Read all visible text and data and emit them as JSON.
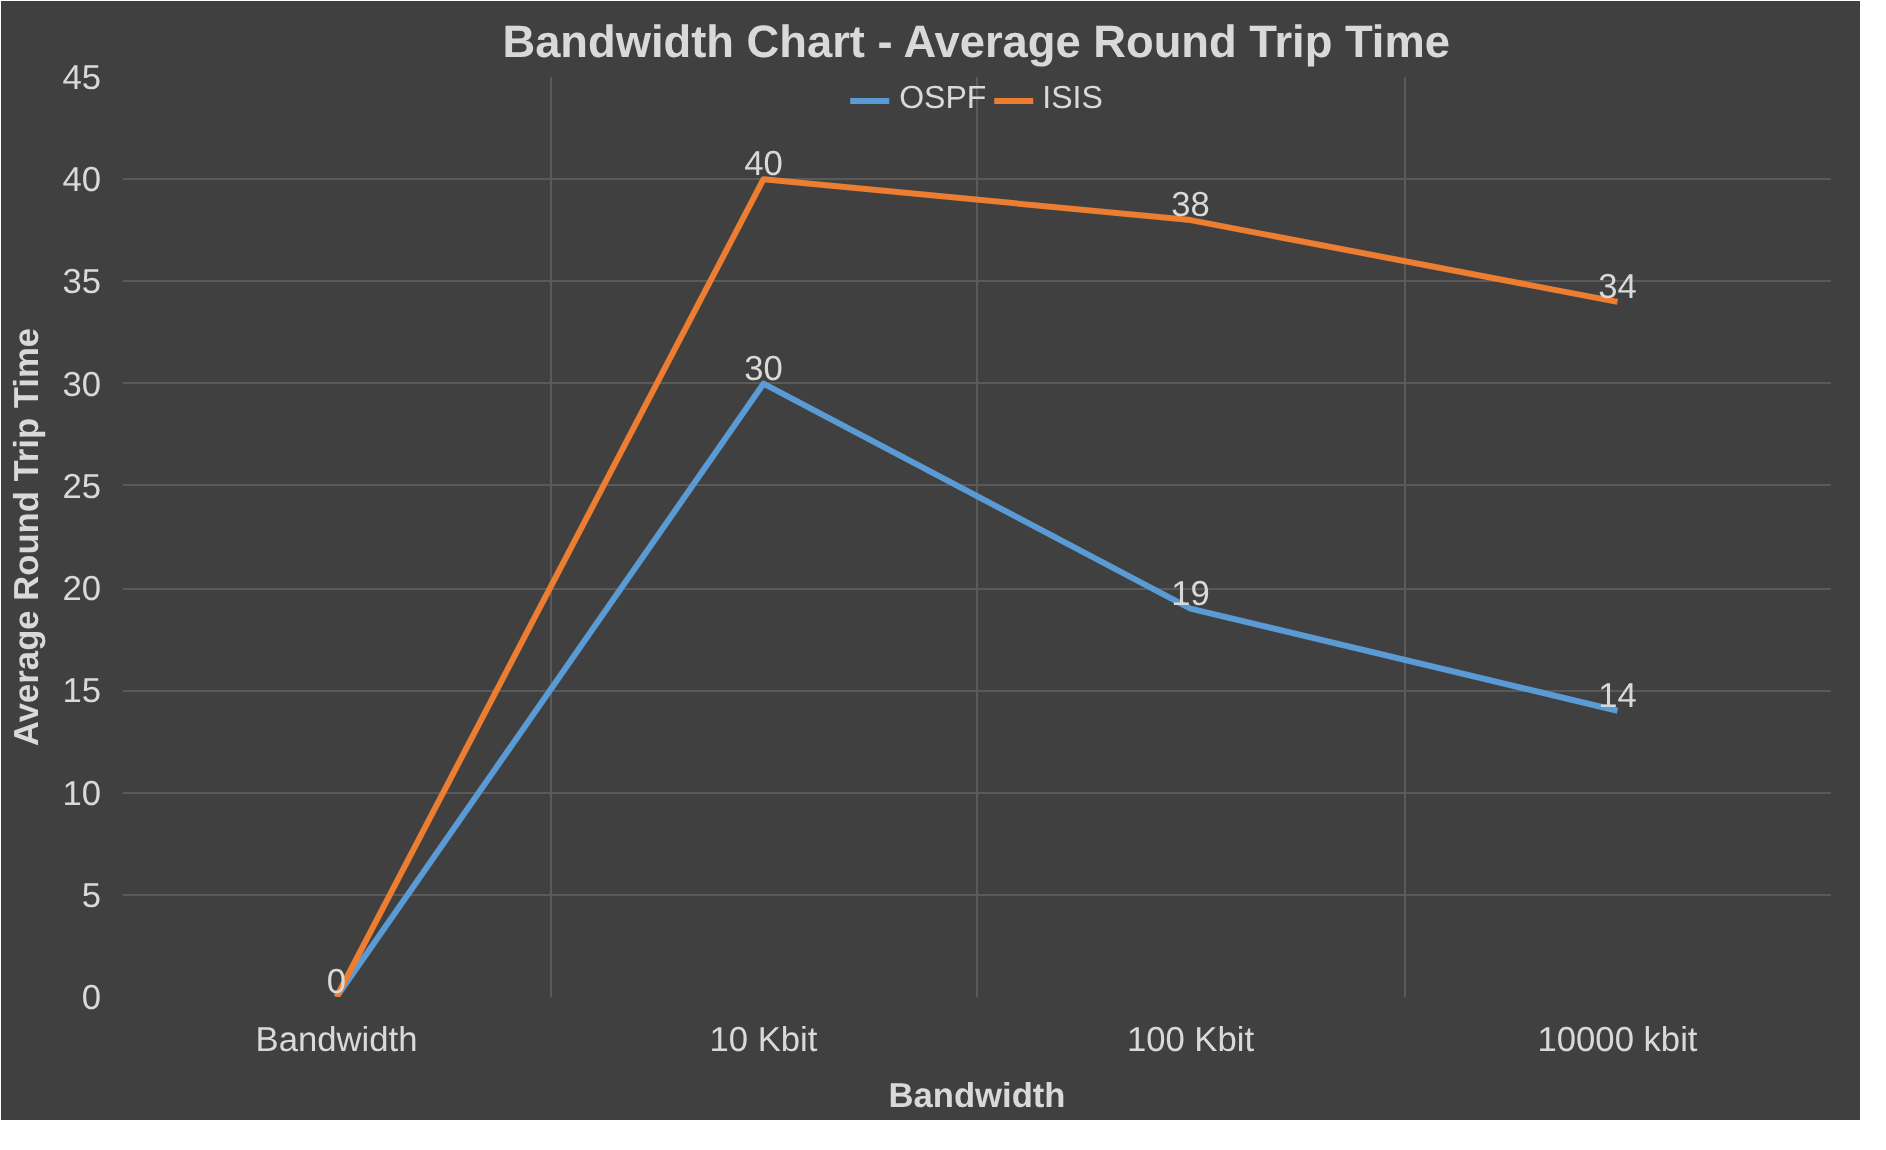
{
  "chart_data": {
    "type": "line",
    "title": "Bandwidth Chart - Average Round Trip Time",
    "xlabel": "Bandwidth",
    "ylabel": "Average Round Trip Time",
    "categories": [
      "Bandwidth",
      "10 Kbit",
      "100 Kbit",
      "10000 kbit"
    ],
    "series": [
      {
        "name": "OSPF",
        "color": "#5b9bd5",
        "values": [
          0,
          30,
          19,
          14
        ],
        "value_labels": [
          "0",
          "30",
          "19",
          "14"
        ]
      },
      {
        "name": "ISIS",
        "color": "#ed7d31",
        "values": [
          0,
          40,
          38,
          34
        ],
        "value_labels": [
          null,
          "40",
          "38",
          "34"
        ]
      }
    ],
    "ylim": [
      0,
      45
    ],
    "yticks": [
      0,
      5,
      10,
      15,
      20,
      25,
      30,
      35,
      40,
      45
    ],
    "grid": true,
    "legend": "top",
    "line_style": "solid"
  }
}
